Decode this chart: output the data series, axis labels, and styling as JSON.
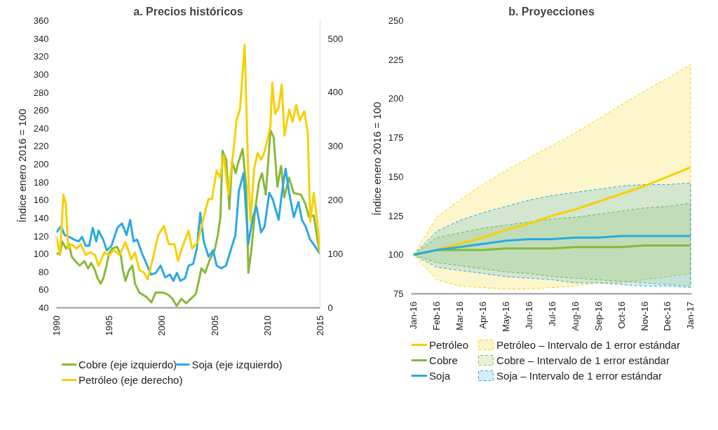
{
  "chart_data": [
    {
      "type": "line",
      "title": "a. Precios históricos",
      "ylabel": "Índice enero 2016  = 100",
      "xlim": [
        1990,
        2015
      ],
      "xticks": [
        1990,
        1995,
        2000,
        2005,
        2010,
        2015
      ],
      "ylim": [
        40,
        360
      ],
      "yticks": [
        40,
        60,
        80,
        100,
        120,
        140,
        160,
        180,
        200,
        220,
        240,
        260,
        280,
        300,
        320,
        340,
        360
      ],
      "y2lim": [
        0,
        533.3
      ],
      "y2ticks": [
        0,
        100,
        200,
        300,
        400,
        500
      ],
      "grid": false,
      "legend": "bottom",
      "series": [
        {
          "name": "Cobre (eje izquierdo)",
          "color": "#8ab83a",
          "x": [
            1990.0,
            1990.33,
            1990.55,
            1990.9,
            1991.2,
            1991.45,
            1991.8,
            1992.2,
            1992.65,
            1993.0,
            1993.3,
            1993.65,
            1993.9,
            1994.2,
            1994.45,
            1994.75,
            1995.0,
            1995.3,
            1995.75,
            1996.1,
            1996.3,
            1996.55,
            1996.85,
            1997.2,
            1997.45,
            1997.85,
            1998.55,
            1999.0,
            1999.4,
            2000.1,
            2000.55,
            2001.0,
            2001.4,
            2001.85,
            2002.3,
            2002.75,
            2003.2,
            2003.5,
            2003.75,
            2004.1,
            2004.55,
            2005.0,
            2005.3,
            2005.55,
            2005.75,
            2006.1,
            2006.4,
            2006.65,
            2007.0,
            2007.2,
            2007.65,
            2008.0,
            2008.2,
            2008.5,
            2008.85,
            2009.2,
            2009.5,
            2009.85,
            2010.3,
            2010.6,
            2010.95,
            2011.3,
            2011.6,
            2012.05,
            2012.5,
            2013.2,
            2013.6,
            2013.95,
            2014.4,
            2014.75,
            2015.0
          ],
          "values": [
            101,
            99,
            114,
            106,
            111,
            97,
            92,
            87,
            92,
            84,
            90,
            82,
            73,
            67,
            73,
            87,
            101,
            106,
            108,
            99,
            82,
            70,
            81,
            87,
            67,
            57,
            52,
            46,
            57,
            57,
            55,
            50,
            42,
            50,
            45,
            50,
            55,
            70,
            84,
            79,
            94,
            104,
            121,
            141,
            215,
            205,
            150,
            203,
            190,
            200,
            217,
            175,
            79,
            106,
            150,
            180,
            190,
            166,
            238,
            230,
            175,
            198,
            163,
            185,
            168,
            166,
            156,
            141,
            143,
            116,
            100
          ]
        },
        {
          "name": "Soja (eje izquierdo)",
          "color": "#2aa9e0",
          "x": [
            1990.0,
            1990.44,
            1990.78,
            1991.22,
            1991.66,
            1992.11,
            1992.44,
            1992.77,
            1993.1,
            1993.44,
            1993.77,
            1993.99,
            1994.43,
            1994.77,
            1995.21,
            1995.77,
            1996.21,
            1996.65,
            1996.99,
            1997.32,
            1997.65,
            1998.1,
            1998.54,
            1998.98,
            1999.43,
            1999.87,
            2000.31,
            2000.76,
            2001.09,
            2001.42,
            2001.75,
            2002.2,
            2002.53,
            2002.97,
            2003.31,
            2003.64,
            2003.97,
            2004.42,
            2004.86,
            2005.19,
            2005.64,
            2006.08,
            2006.52,
            2006.97,
            2007.3,
            2007.74,
            2008.19,
            2008.63,
            2008.96,
            2009.41,
            2009.74,
            2010.18,
            2010.51,
            2011.07,
            2011.4,
            2011.73,
            2012.07,
            2012.51,
            2012.95,
            2013.28,
            2013.62,
            2014.06,
            2014.5,
            2015.0
          ],
          "values": [
            124,
            131,
            121,
            119,
            116,
            114,
            119,
            109,
            109,
            129,
            114,
            126,
            116,
            104,
            109,
            129,
            134,
            121,
            138,
            114,
            116,
            101,
            89,
            77,
            79,
            87,
            74,
            77,
            70,
            79,
            70,
            73,
            87,
            89,
            106,
            146,
            114,
            97,
            104,
            87,
            84,
            87,
            104,
            121,
            170,
            190,
            111,
            141,
            153,
            124,
            131,
            168,
            161,
            138,
            170,
            195,
            168,
            141,
            158,
            138,
            131,
            116,
            109,
            100
          ]
        },
        {
          "name": "Petróleo (eje derecho)",
          "color": "#f7d000",
          "axis": "y2",
          "x": [
            1990.0,
            1990.33,
            1990.66,
            1990.89,
            1991.11,
            1991.44,
            1991.89,
            1992.33,
            1992.77,
            1993.22,
            1993.66,
            1993.99,
            1994.55,
            1994.99,
            1995.43,
            1995.99,
            1996.54,
            1997.1,
            1997.43,
            1997.87,
            1998.32,
            1998.65,
            1999.09,
            1999.65,
            2000.2,
            2000.65,
            2001.2,
            2001.53,
            2001.98,
            2002.53,
            2002.86,
            2003.42,
            2003.86,
            2004.42,
            2004.75,
            2005.19,
            2005.52,
            2005.86,
            2006.3,
            2006.74,
            2007.08,
            2007.41,
            2007.63,
            2007.85,
            2008.19,
            2008.41,
            2008.74,
            2009.07,
            2009.41,
            2009.74,
            2010.29,
            2010.47,
            2010.73,
            2011.07,
            2011.36,
            2011.62,
            2012.07,
            2012.4,
            2012.73,
            2013.07,
            2013.51,
            2013.84,
            2014.06,
            2014.4,
            2014.73,
            2015.0
          ],
          "values": [
            132,
            98,
            210,
            193,
            110,
            118,
            110,
            118,
            98,
            103,
            98,
            78,
            103,
            98,
            107,
            98,
            122,
            90,
            103,
            70,
            65,
            53,
            87,
            135,
            152,
            118,
            118,
            87,
            115,
            143,
            110,
            123,
            160,
            202,
            202,
            255,
            242,
            283,
            210,
            283,
            348,
            370,
            430,
            488,
            247,
            160,
            258,
            287,
            275,
            290,
            337,
            418,
            360,
            372,
            415,
            320,
            368,
            345,
            377,
            348,
            365,
            323,
            160,
            213,
            160,
            100
          ]
        }
      ]
    },
    {
      "type": "line",
      "title": "b. Proyecciones",
      "ylabel": "Índice enero 2016  = 100",
      "categories": [
        "Jan-16",
        "Feb-16",
        "Mar-16",
        "Apr-16",
        "May-16",
        "Jun-16",
        "Jul-16",
        "Aug-16",
        "Sep-16",
        "Oct-16",
        "Nov-16",
        "Dec-16",
        "Jan-17"
      ],
      "ylim": [
        75,
        250
      ],
      "yticks": [
        75,
        100,
        125,
        150,
        175,
        200,
        225,
        250
      ],
      "grid": false,
      "legend": "bottom",
      "line_style": "solid",
      "series": [
        {
          "name": "Petróleo",
          "color": "#f7d000",
          "values": [
            100,
            103,
            107,
            111,
            116,
            120,
            125,
            129,
            134,
            139,
            144,
            150,
            156
          ]
        },
        {
          "name": "Petróleo – Intervalo de 1 error estándar",
          "type": "area",
          "color": "#f7d000",
          "values": [
            null,
            null,
            null,
            null,
            null,
            null,
            null,
            null,
            null,
            null,
            null,
            null,
            null
          ],
          "upper": [
            100,
            124,
            135,
            145,
            154,
            162,
            170,
            178,
            187,
            196,
            205,
            213,
            222
          ],
          "lower": [
            100,
            84,
            80,
            79,
            78,
            78,
            79,
            80,
            82,
            82,
            84,
            86,
            88
          ]
        },
        {
          "name": "Cobre",
          "color": "#8ab83a",
          "values": [
            100,
            103,
            103,
            103,
            104,
            104,
            104,
            105,
            105,
            105,
            106,
            106,
            106
          ]
        },
        {
          "name": "Cobre – Intervalo de 1 error estándar",
          "type": "area",
          "color": "#8ab83a",
          "values": [
            null,
            null,
            null,
            null,
            null,
            null,
            null,
            null,
            null,
            null,
            null,
            null,
            null
          ],
          "upper": [
            100,
            111,
            114,
            117,
            119,
            121,
            123,
            124,
            126,
            128,
            130,
            131,
            133
          ],
          "lower": [
            100,
            95,
            93,
            91,
            89,
            88,
            86,
            85,
            84,
            83,
            82,
            81,
            80
          ]
        },
        {
          "name": "Soja",
          "color": "#2aa9e0",
          "values": [
            100,
            103,
            105,
            107,
            109,
            110,
            110,
            111,
            111,
            112,
            112,
            112,
            112
          ]
        },
        {
          "name": "Soja – Intervalo de 1 error estándar",
          "type": "area",
          "color": "#2aa9e0",
          "values": [
            null,
            null,
            null,
            null,
            null,
            null,
            null,
            null,
            null,
            null,
            null,
            null,
            null
          ],
          "upper": [
            100,
            115,
            122,
            127,
            131,
            135,
            138,
            140,
            142,
            144,
            145,
            145,
            146
          ],
          "lower": [
            100,
            92,
            90,
            88,
            86,
            85,
            84,
            82,
            82,
            81,
            80,
            80,
            79
          ]
        }
      ]
    }
  ]
}
